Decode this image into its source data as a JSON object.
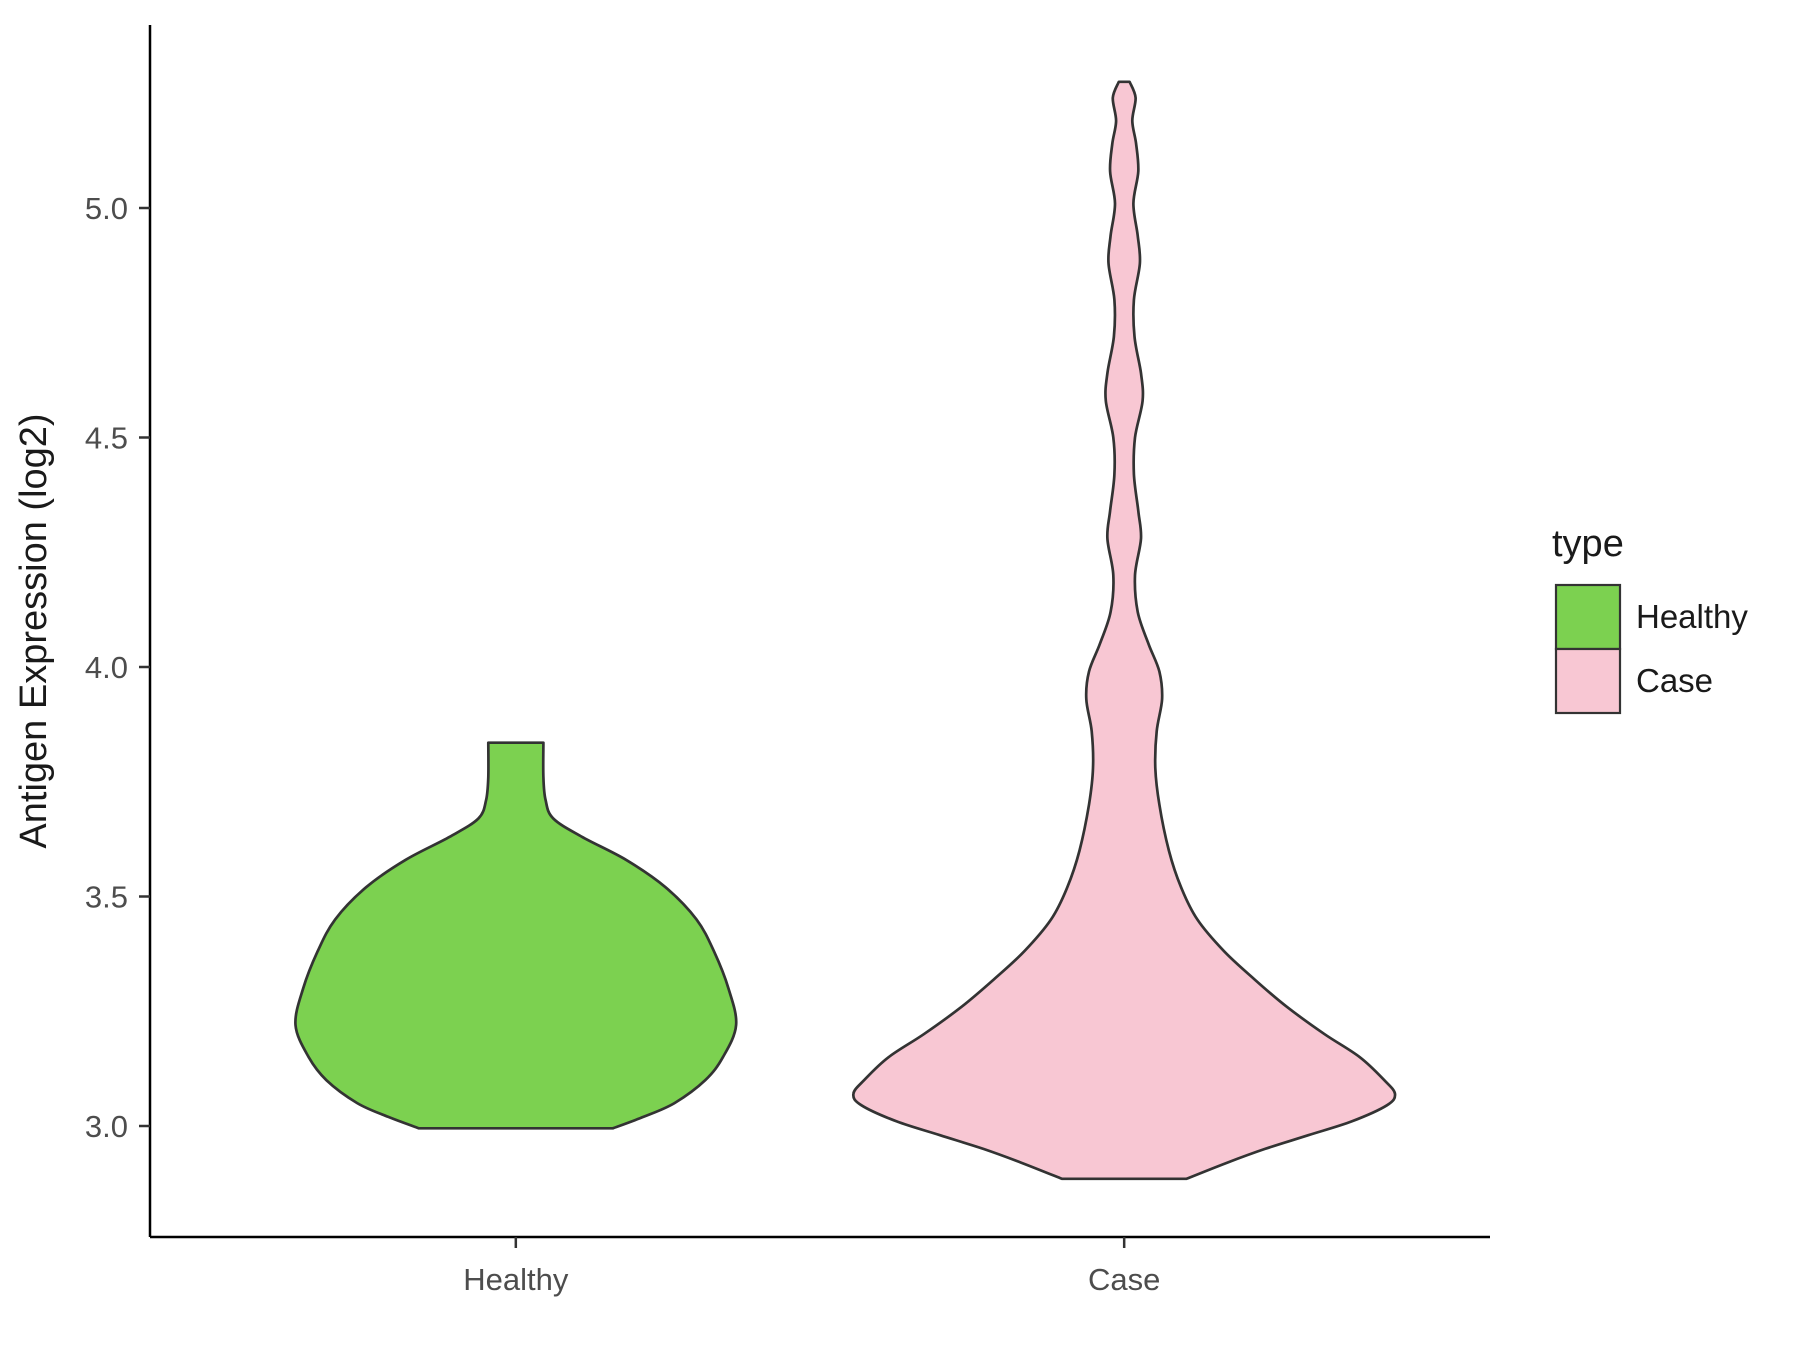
{
  "chart_data": {
    "type": "violin",
    "title": "",
    "xlabel": "",
    "ylabel": "Antigen Expression (log2)",
    "categories": [
      "Healthy",
      "Case"
    ],
    "yticks": [
      3.0,
      3.5,
      4.0,
      4.5,
      5.0
    ],
    "ytick_labels": [
      "3.0",
      "3.5",
      "4.0",
      "4.5",
      "5.0"
    ],
    "ylim": [
      2.76,
      5.4
    ],
    "grid": "off",
    "panel_background": "#ffffff",
    "axis_color": "#000000",
    "tick_text_color": "#4d4d4d",
    "outline_color": "#333333",
    "legend": {
      "title": "type",
      "position": "right",
      "entries": [
        {
          "label": "Healthy",
          "color": "#7CD150"
        },
        {
          "label": "Case",
          "color": "#F8C7D3"
        }
      ]
    },
    "series": [
      {
        "name": "Healthy",
        "color": "#7CD150",
        "category_index": 0,
        "y_min": 2.995,
        "y_max": 3.835,
        "max_halfwidth_units": 0.48,
        "profile": [
          [
            2.995,
            0.44
          ],
          [
            3.02,
            0.58
          ],
          [
            3.05,
            0.72
          ],
          [
            3.1,
            0.86
          ],
          [
            3.15,
            0.94
          ],
          [
            3.22,
            1.0
          ],
          [
            3.3,
            0.965
          ],
          [
            3.38,
            0.9
          ],
          [
            3.45,
            0.82
          ],
          [
            3.52,
            0.68
          ],
          [
            3.58,
            0.5
          ],
          [
            3.63,
            0.3
          ],
          [
            3.67,
            0.17
          ],
          [
            3.71,
            0.135
          ],
          [
            3.76,
            0.125
          ],
          [
            3.835,
            0.125
          ]
        ]
      },
      {
        "name": "Case",
        "color": "#F8C7D3",
        "category_index": 1,
        "y_min": 2.885,
        "y_max": 5.275,
        "max_halfwidth_units": 0.59,
        "profile": [
          [
            2.885,
            0.23
          ],
          [
            2.92,
            0.38
          ],
          [
            2.95,
            0.52
          ],
          [
            2.98,
            0.68
          ],
          [
            3.01,
            0.84
          ],
          [
            3.045,
            0.97
          ],
          [
            3.07,
            1.0
          ],
          [
            3.1,
            0.96
          ],
          [
            3.15,
            0.87
          ],
          [
            3.2,
            0.74
          ],
          [
            3.26,
            0.6
          ],
          [
            3.32,
            0.48
          ],
          [
            3.38,
            0.37
          ],
          [
            3.45,
            0.27
          ],
          [
            3.52,
            0.21
          ],
          [
            3.6,
            0.165
          ],
          [
            3.7,
            0.13
          ],
          [
            3.78,
            0.115
          ],
          [
            3.86,
            0.12
          ],
          [
            3.93,
            0.14
          ],
          [
            3.99,
            0.13
          ],
          [
            4.05,
            0.09
          ],
          [
            4.12,
            0.05
          ],
          [
            4.2,
            0.04
          ],
          [
            4.28,
            0.062
          ],
          [
            4.34,
            0.052
          ],
          [
            4.42,
            0.036
          ],
          [
            4.5,
            0.04
          ],
          [
            4.58,
            0.068
          ],
          [
            4.64,
            0.062
          ],
          [
            4.72,
            0.038
          ],
          [
            4.8,
            0.036
          ],
          [
            4.88,
            0.058
          ],
          [
            4.94,
            0.05
          ],
          [
            5.01,
            0.034
          ],
          [
            5.08,
            0.052
          ],
          [
            5.14,
            0.044
          ],
          [
            5.19,
            0.03
          ],
          [
            5.24,
            0.042
          ],
          [
            5.275,
            0.02
          ]
        ]
      }
    ]
  }
}
